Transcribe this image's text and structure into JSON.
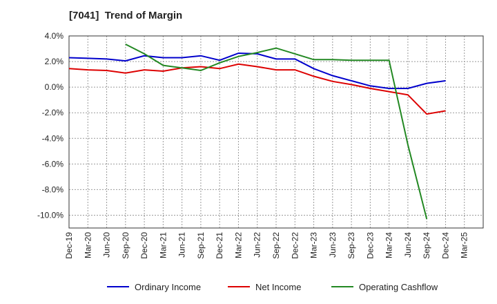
{
  "chart_data": {
    "type": "line",
    "title": "[7041]  Trend of Margin",
    "categories": [
      "Dec-19",
      "Mar-20",
      "Jun-20",
      "Sep-20",
      "Dec-20",
      "Mar-21",
      "Jun-21",
      "Sep-21",
      "Dec-21",
      "Mar-22",
      "Jun-22",
      "Sep-22",
      "Dec-22",
      "Mar-23",
      "Jun-23",
      "Sep-23",
      "Dec-23",
      "Mar-24",
      "Jun-24",
      "Sep-24",
      "Dec-24",
      "Mar-25"
    ],
    "y_ticks": [
      "4.0%",
      "2.0%",
      "0.0%",
      "-2.0%",
      "-4.0%",
      "-6.0%",
      "-8.0%",
      "-10.0%"
    ],
    "ylim": [
      -11,
      4
    ],
    "y_tick_values": [
      4,
      2,
      0,
      -2,
      -4,
      -6,
      -8,
      -10
    ],
    "grid": true,
    "legend_position": "bottom",
    "series": [
      {
        "name": "Ordinary Income",
        "color": "#0000cc",
        "values": [
          2.3,
          2.25,
          2.2,
          2.05,
          2.45,
          2.3,
          2.3,
          2.45,
          2.1,
          2.65,
          2.6,
          2.2,
          2.2,
          1.45,
          0.9,
          0.5,
          0.1,
          -0.1,
          -0.1,
          0.3,
          0.5,
          null
        ]
      },
      {
        "name": "Net Income",
        "color": "#dd0000",
        "values": [
          1.45,
          1.35,
          1.3,
          1.1,
          1.35,
          1.25,
          1.5,
          1.6,
          1.45,
          1.8,
          1.6,
          1.35,
          1.35,
          0.85,
          0.45,
          0.2,
          -0.1,
          -0.35,
          -0.6,
          -2.1,
          -1.85,
          null
        ]
      },
      {
        "name": "Operating Cashflow",
        "color": "#228822",
        "values": [
          null,
          null,
          null,
          3.35,
          2.6,
          1.7,
          1.5,
          1.3,
          1.9,
          2.4,
          2.7,
          3.05,
          2.6,
          2.15,
          2.15,
          2.1,
          2.1,
          2.1,
          -4.5,
          -10.3,
          null,
          null
        ]
      }
    ]
  }
}
